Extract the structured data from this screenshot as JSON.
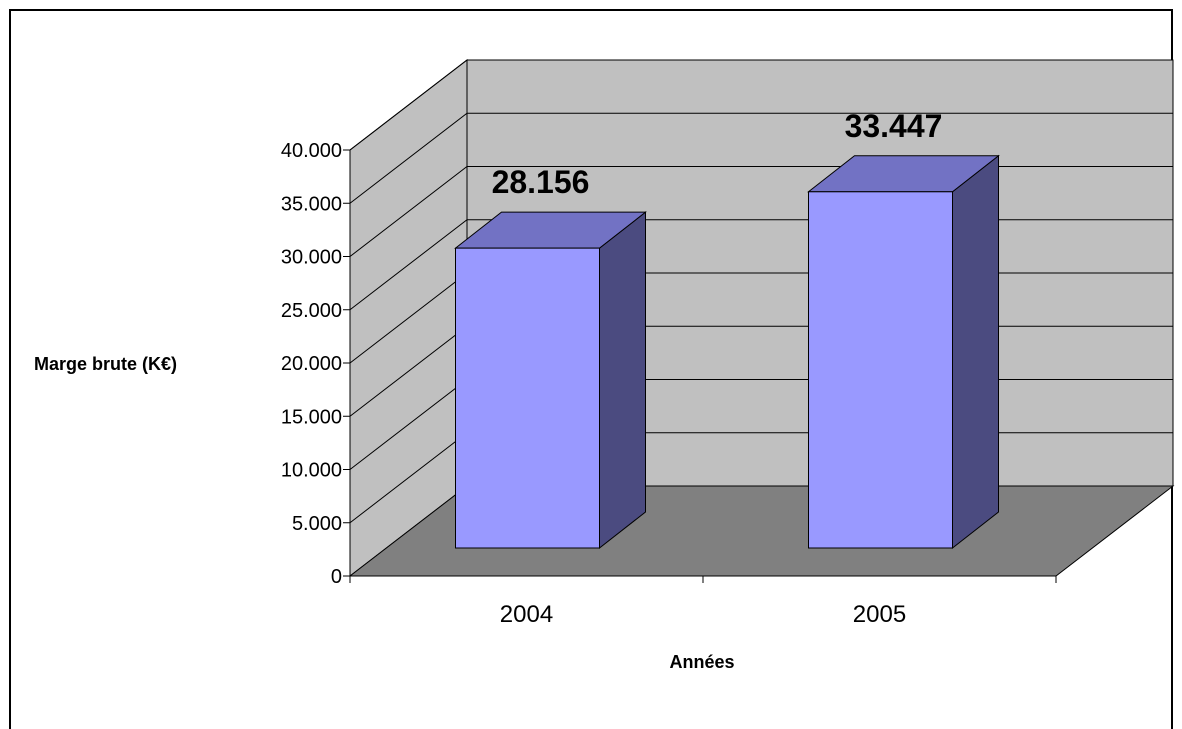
{
  "chart_data": {
    "type": "bar",
    "categories": [
      "2004",
      "2005"
    ],
    "values": [
      28156,
      33447
    ],
    "value_labels": [
      "28.156",
      "33.447"
    ],
    "title": "",
    "xlabel": "Années",
    "ylabel": "Marge brute (K€)",
    "ylim": [
      0,
      40000
    ],
    "ytick_labels": [
      "0",
      "5.000",
      "10.000",
      "15.000",
      "20.000",
      "25.000",
      "30.000",
      "35.000",
      "40.000"
    ],
    "grid": true,
    "legend": "none",
    "three_d": true,
    "colors": {
      "bar_front": "#9999ff",
      "bar_top": "#7272c4",
      "bar_side": "#4b4b80",
      "back_wall": "#c0c0c0",
      "floor": "#808080"
    }
  }
}
